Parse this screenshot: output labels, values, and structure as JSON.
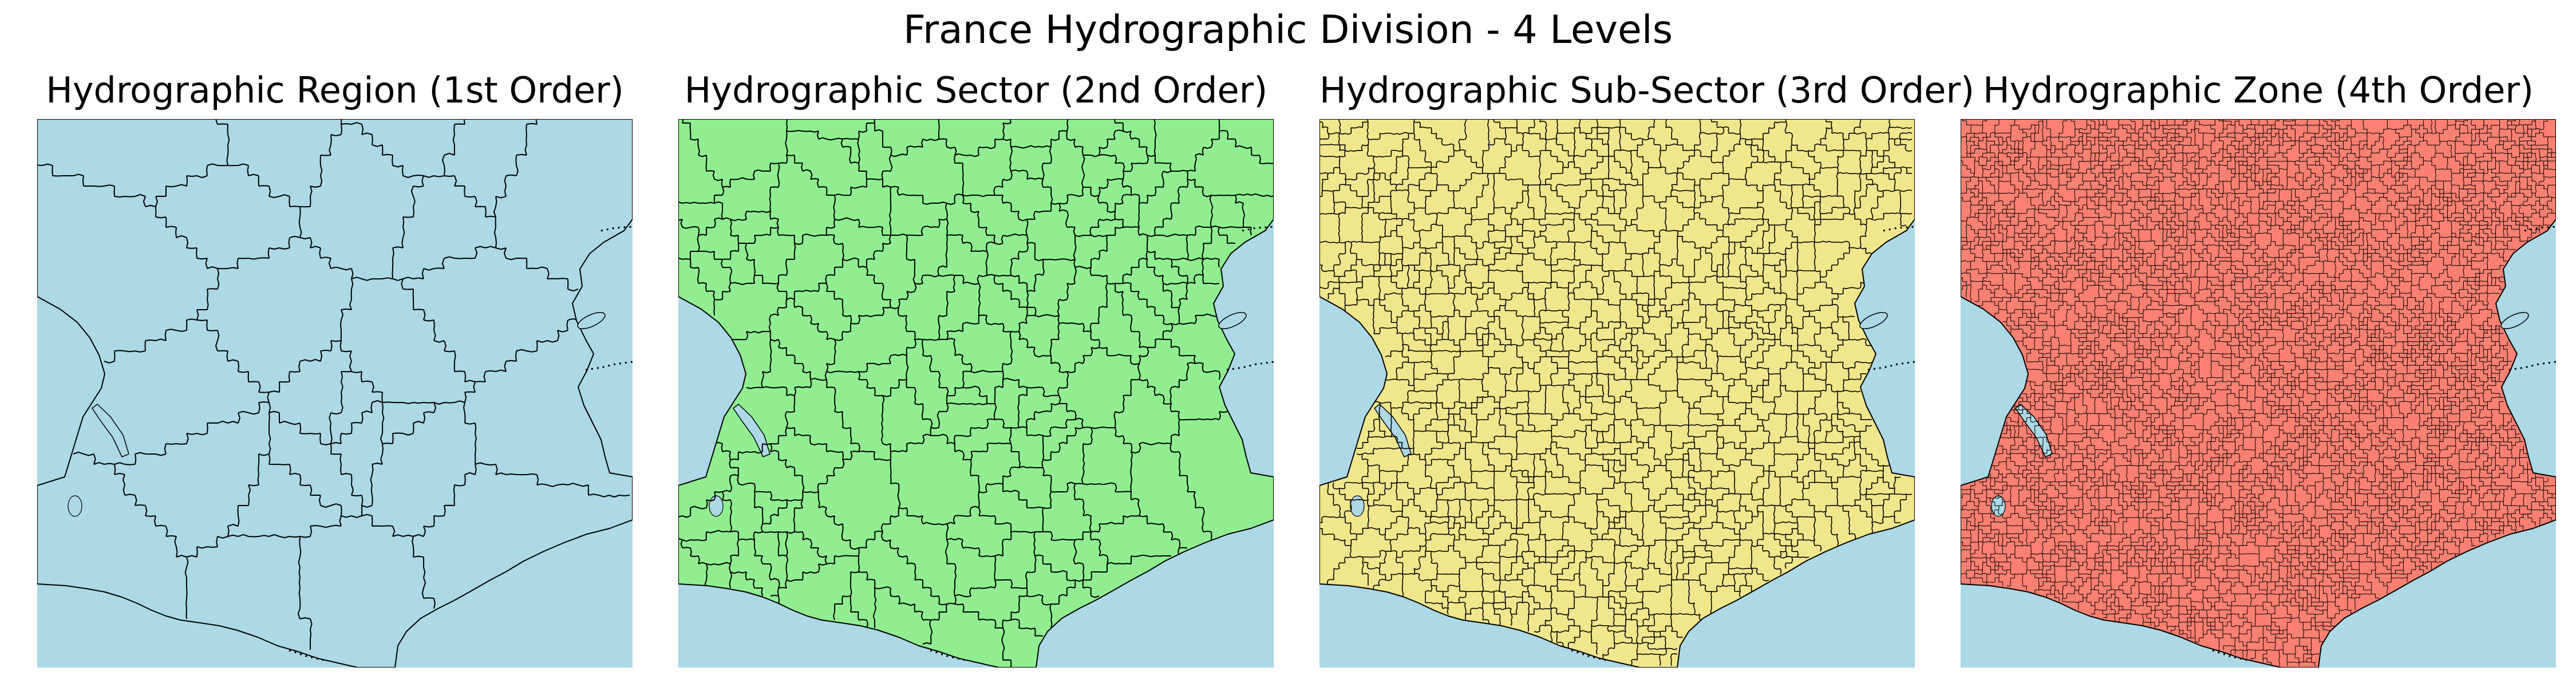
{
  "figure": {
    "title": "France Hydrographic Division - 4 Levels"
  },
  "colors": {
    "sea": "#add8e6",
    "outline": "#000000"
  },
  "panels": [
    {
      "title": "Hydrographic Region (1st Order)",
      "fill": "#add8e6",
      "level": 1
    },
    {
      "title": "Hydrographic Sector (2nd Order)",
      "fill": "#90ee90",
      "level": 2
    },
    {
      "title": "Hydrographic Sub-Sector (3rd Order)",
      "fill": "#f0e68c",
      "level": 3
    },
    {
      "title": "Hydrographic Zone (4th Order)",
      "fill": "#fa8072",
      "level": 4
    }
  ]
}
